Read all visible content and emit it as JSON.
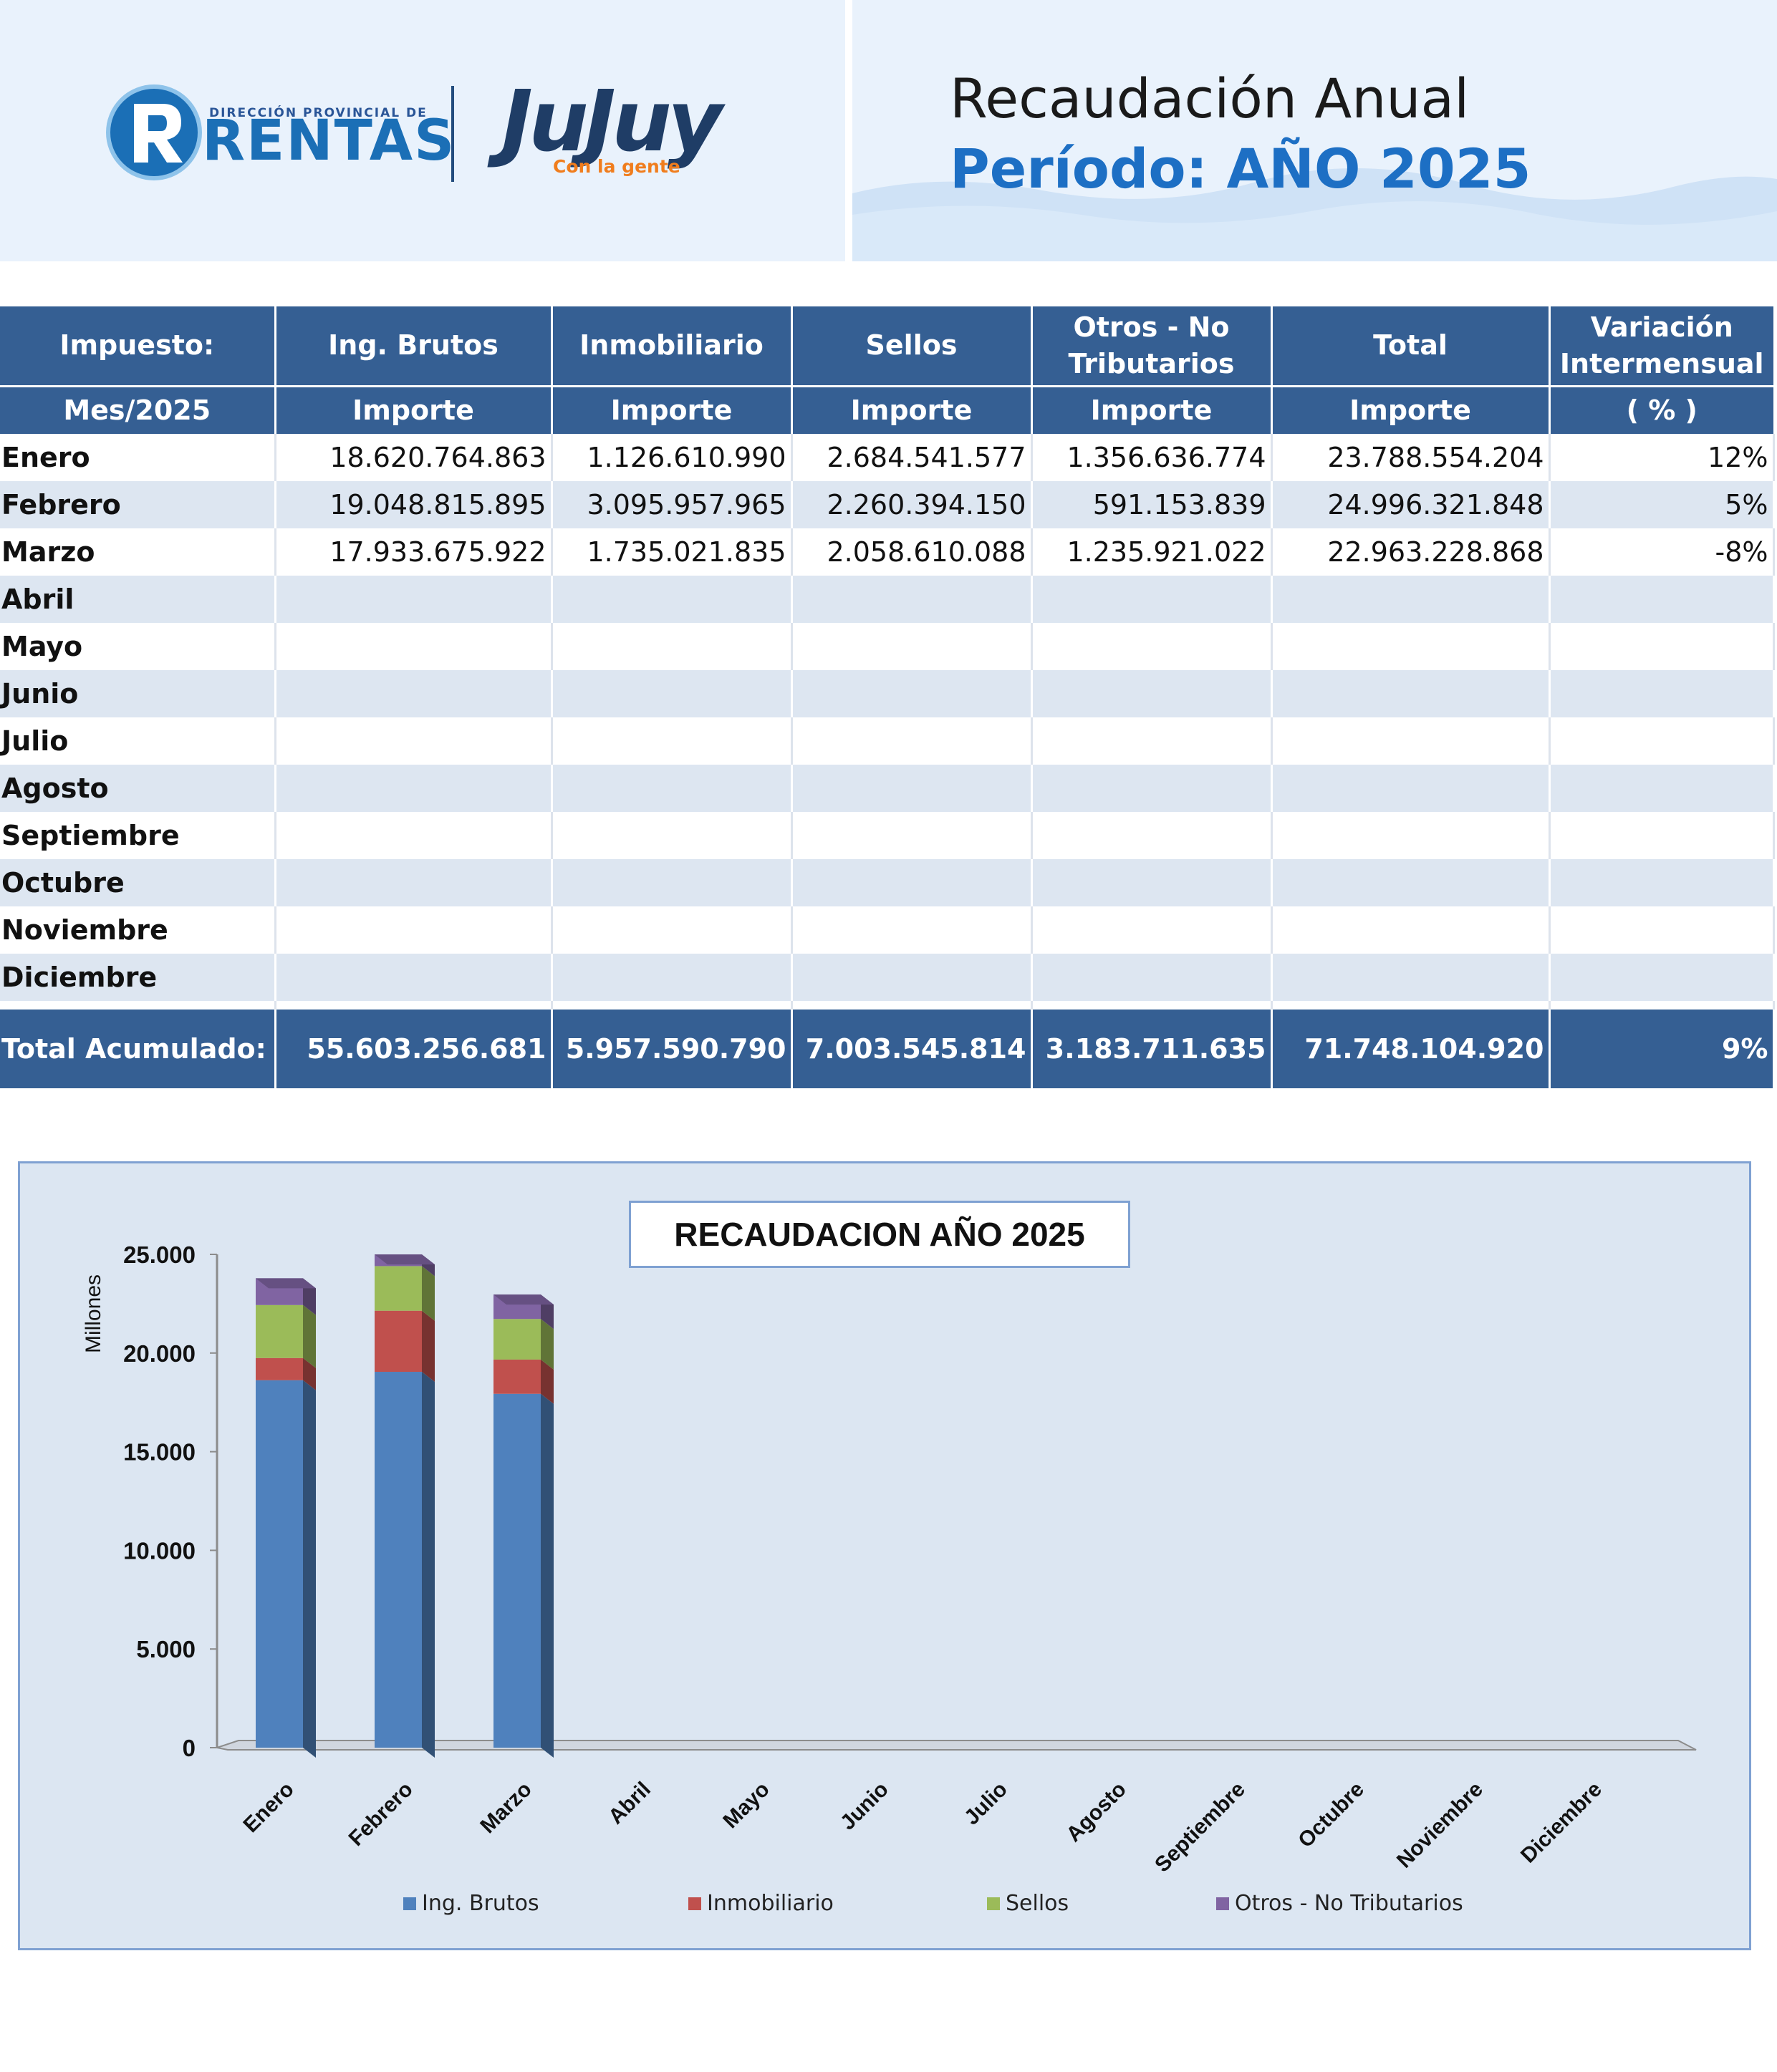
{
  "header": {
    "brand_small": "DIRECCIÓN PROVINCIAL DE",
    "brand_name": "RENTAS",
    "gov_name": "JuJuy",
    "gov_slogan": "Con la gente",
    "title": "Recaudación Anual",
    "period": "Período: AÑO 2025"
  },
  "table": {
    "header_row1": [
      "Impuesto:",
      "Ing. Brutos",
      "Inmobiliario",
      "Sellos",
      "Otros - No Tributarios",
      "Total",
      "Variación Intermensual"
    ],
    "header_row2": [
      "Mes/2025",
      "Importe",
      "Importe",
      "Importe",
      "Importe",
      "Importe",
      "( % )"
    ],
    "rows": [
      [
        "Enero",
        "18.620.764.863",
        "1.126.610.990",
        "2.684.541.577",
        "1.356.636.774",
        "23.788.554.204",
        "12%"
      ],
      [
        "Febrero",
        "19.048.815.895",
        "3.095.957.965",
        "2.260.394.150",
        "591.153.839",
        "24.996.321.848",
        "5%"
      ],
      [
        "Marzo",
        "17.933.675.922",
        "1.735.021.835",
        "2.058.610.088",
        "1.235.921.022",
        "22.963.228.868",
        "-8%"
      ],
      [
        "Abril",
        "",
        "",
        "",
        "",
        "",
        ""
      ],
      [
        "Mayo",
        "",
        "",
        "",
        "",
        "",
        ""
      ],
      [
        "Junio",
        "",
        "",
        "",
        "",
        "",
        ""
      ],
      [
        "Julio",
        "",
        "",
        "",
        "",
        "",
        ""
      ],
      [
        "Agosto",
        "",
        "",
        "",
        "",
        "",
        ""
      ],
      [
        "Septiembre",
        "",
        "",
        "",
        "",
        "",
        ""
      ],
      [
        "Octubre",
        "",
        "",
        "",
        "",
        "",
        ""
      ],
      [
        "Noviembre",
        "",
        "",
        "",
        "",
        "",
        ""
      ],
      [
        "Diciembre",
        "",
        "",
        "",
        "",
        "",
        ""
      ]
    ],
    "total_row": [
      "Total Acumulado:",
      "55.603.256.681",
      "5.957.590.790",
      "7.003.545.814",
      "3.183.711.635",
      "71.748.104.920",
      "9%"
    ]
  },
  "chart_data": {
    "type": "bar",
    "stacked": true,
    "title": "RECAUDACION AÑO 2025",
    "ylabel": "Millones",
    "ylim": [
      0,
      25000
    ],
    "yticks": [
      0,
      5000,
      10000,
      15000,
      20000,
      25000
    ],
    "ytick_labels": [
      "0",
      "5.000",
      "10.000",
      "15.000",
      "20.000",
      "25.000"
    ],
    "categories": [
      "Enero",
      "Febrero",
      "Marzo",
      "Abril",
      "Mayo",
      "Junio",
      "Julio",
      "Agosto",
      "Septiembre",
      "Octubre",
      "Noviembre",
      "Diciembre"
    ],
    "series": [
      {
        "name": "Ing. Brutos",
        "color": "#4f81bd",
        "values": [
          18620.76,
          19048.82,
          17933.68,
          null,
          null,
          null,
          null,
          null,
          null,
          null,
          null,
          null
        ]
      },
      {
        "name": "Inmobiliario",
        "color": "#c0504d",
        "values": [
          1126.61,
          3095.96,
          1735.02,
          null,
          null,
          null,
          null,
          null,
          null,
          null,
          null,
          null
        ]
      },
      {
        "name": "Sellos",
        "color": "#9bbb59",
        "values": [
          2684.54,
          2260.39,
          2058.61,
          null,
          null,
          null,
          null,
          null,
          null,
          null,
          null,
          null
        ]
      },
      {
        "name": "Otros - No Tributarios",
        "color": "#8064a2",
        "values": [
          1356.64,
          591.15,
          1235.92,
          null,
          null,
          null,
          null,
          null,
          null,
          null,
          null,
          null
        ]
      }
    ],
    "legend_position": "bottom",
    "grid": false
  }
}
